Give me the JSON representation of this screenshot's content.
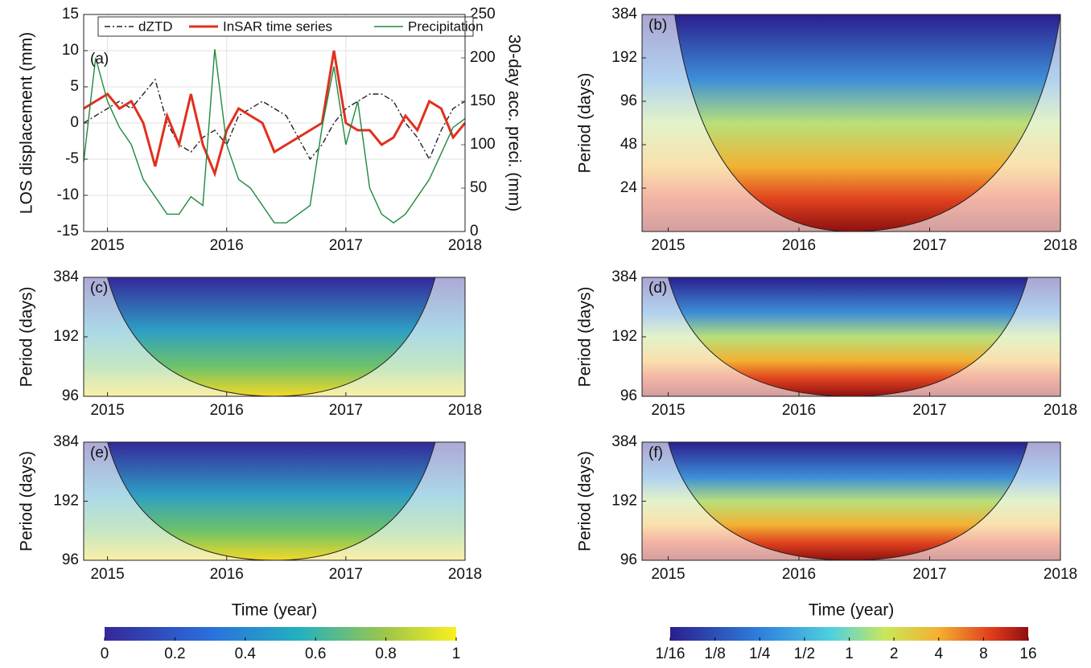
{
  "chart_data": [
    {
      "type": "line",
      "panel_label": "(a)",
      "ylabel": "LOS displacement (mm)",
      "y2label": "30-day acc. preci. (mm)",
      "x": [
        2014.8,
        2014.9,
        2015.0,
        2015.1,
        2015.2,
        2015.3,
        2015.4,
        2015.5,
        2015.6,
        2015.7,
        2015.8,
        2015.9,
        2016.0,
        2016.1,
        2016.2,
        2016.3,
        2016.4,
        2016.5,
        2016.6,
        2016.7,
        2016.8,
        2016.9,
        2017.0,
        2017.1,
        2017.2,
        2017.3,
        2017.4,
        2017.5,
        2017.6,
        2017.7,
        2017.8,
        2017.9,
        2018.0
      ],
      "series": [
        {
          "name": "dZTD",
          "color": "#222222",
          "dash": true,
          "values": [
            0,
            1,
            2,
            3,
            2,
            4,
            6,
            0,
            -3,
            -4,
            -2,
            -1,
            -3,
            1,
            2,
            3,
            2,
            1,
            -2,
            -5,
            -3,
            0,
            2,
            3,
            4,
            4,
            3,
            0,
            -2,
            -5,
            -1,
            2,
            3
          ]
        },
        {
          "name": "InSAR time series",
          "color": "#e0301e",
          "values": [
            2,
            3,
            4,
            2,
            3,
            0,
            -6,
            1,
            -3,
            4,
            -3,
            -7,
            -1,
            2,
            1,
            0,
            -4,
            -3,
            -2,
            -1,
            0,
            10,
            0,
            -1,
            -1,
            -3,
            -2,
            1,
            -1,
            3,
            2,
            -2,
            0
          ]
        },
        {
          "name": "Precipitation",
          "color": "#1e8a3c",
          "axis": "y2",
          "values": [
            80,
            200,
            150,
            120,
            100,
            60,
            40,
            20,
            20,
            40,
            30,
            210,
            100,
            60,
            50,
            30,
            10,
            10,
            20,
            30,
            120,
            190,
            100,
            150,
            50,
            20,
            10,
            20,
            40,
            60,
            90,
            120,
            130
          ]
        }
      ],
      "xlim": [
        2014.8,
        2018.0
      ],
      "xticks": [
        2015,
        2016,
        2017,
        2018
      ],
      "ylim": [
        -15,
        15
      ],
      "yticks": [
        -15,
        -10,
        -5,
        0,
        5,
        10,
        15
      ],
      "y2lim": [
        0,
        250
      ],
      "y2ticks": [
        0,
        50,
        100,
        150,
        200,
        250
      ],
      "grid": true,
      "legend": "top"
    },
    {
      "type": "wavelet",
      "panel_label": "(b)",
      "ylabel": "Period (days)",
      "palette": "jet",
      "log_y": true,
      "xlim": [
        2014.8,
        2018.0
      ],
      "xticks": [
        2015,
        2016,
        2017,
        2018
      ],
      "ylim": [
        12,
        384
      ],
      "yticks": [
        24,
        48,
        96,
        192,
        384
      ]
    },
    {
      "type": "wavelet",
      "panel_label": "(c)",
      "ylabel": "Period (days)",
      "palette": "parula",
      "log_y": true,
      "xlim": [
        2014.8,
        2018.0
      ],
      "xticks": [
        2015,
        2016,
        2017,
        2018
      ],
      "ylim": [
        96,
        384
      ],
      "yticks": [
        96,
        192,
        384
      ]
    },
    {
      "type": "wavelet",
      "panel_label": "(d)",
      "ylabel": "Period (days)",
      "palette": "jet",
      "log_y": true,
      "xlim": [
        2014.8,
        2018.0
      ],
      "xticks": [
        2015,
        2016,
        2017,
        2018
      ],
      "ylim": [
        96,
        384
      ],
      "yticks": [
        96,
        192,
        384
      ]
    },
    {
      "type": "wavelet",
      "panel_label": "(e)",
      "ylabel": "Period (days)",
      "xlabel": "Time (year)",
      "palette": "parula",
      "log_y": true,
      "xlim": [
        2014.8,
        2018.0
      ],
      "xticks": [
        2015,
        2016,
        2017,
        2018
      ],
      "ylim": [
        96,
        384
      ],
      "yticks": [
        96,
        192,
        384
      ]
    },
    {
      "type": "wavelet",
      "panel_label": "(f)",
      "ylabel": "Period (days)",
      "xlabel": "Time (year)",
      "palette": "jet",
      "log_y": true,
      "xlim": [
        2014.8,
        2018.0
      ],
      "xticks": [
        2015,
        2016,
        2017,
        2018
      ],
      "ylim": [
        96,
        384
      ],
      "yticks": [
        96,
        192,
        384
      ]
    },
    {
      "type": "colorbar",
      "palette": "parula",
      "xlim": [
        0,
        1
      ],
      "xticks": [
        0,
        0.2,
        0.4,
        0.6,
        0.8,
        1
      ]
    },
    {
      "type": "colorbar",
      "palette": "jet",
      "log_x": true,
      "xlim": [
        0.0625,
        16
      ],
      "xticks": [
        {
          "value": 0.0625,
          "label": "1/16"
        },
        {
          "value": 0.125,
          "label": "1/8"
        },
        {
          "value": 0.25,
          "label": "1/4"
        },
        {
          "value": 0.5,
          "label": "1/2"
        },
        1,
        2,
        4,
        8,
        16
      ]
    }
  ]
}
